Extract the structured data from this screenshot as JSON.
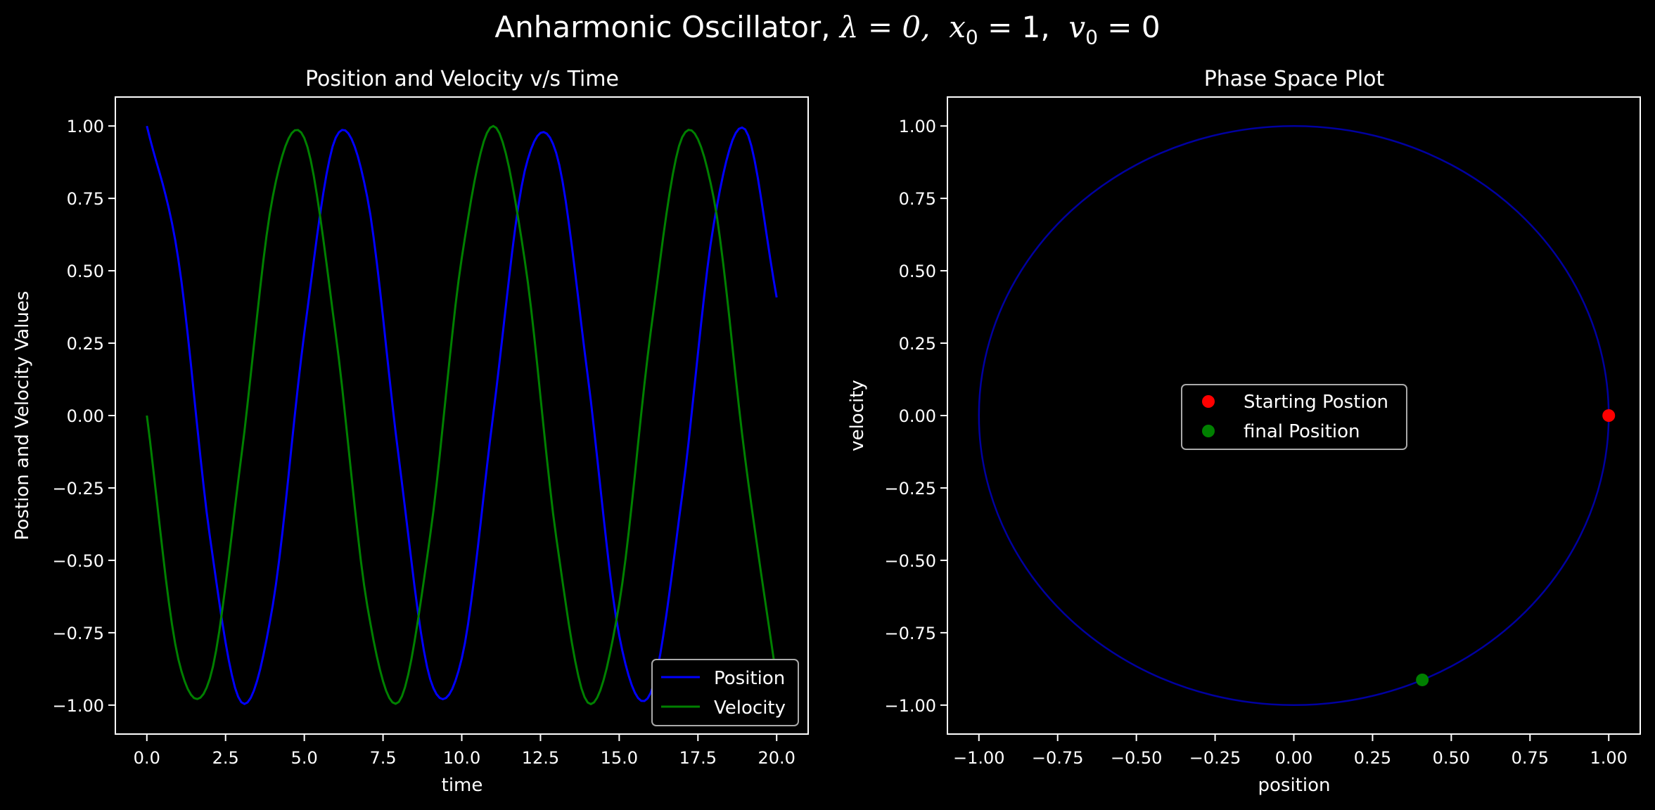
{
  "figure": {
    "title_text": "Anharmonic Oscillator, ",
    "title_lambda": "λ = 0,",
    "title_x0_var": "x",
    "title_x0_sub": "0",
    "title_x0_val": " = 1,",
    "title_v0_var": "v",
    "title_v0_sub": "0",
    "title_v0_val": " = 0",
    "background": "#000000",
    "foreground": "#ffffff"
  },
  "chart_data": [
    {
      "type": "line",
      "title": "Position and Velocity v/s Time",
      "xlabel": "time",
      "ylabel": "Postion and Velocity Values",
      "xlim": [
        -1.0,
        21.0
      ],
      "ylim": [
        -1.1,
        1.1
      ],
      "xticks": [
        0.0,
        2.5,
        5.0,
        7.5,
        10.0,
        12.5,
        15.0,
        17.5,
        20.0
      ],
      "xtick_labels": [
        "0.0",
        "2.5",
        "5.0",
        "7.5",
        "10.0",
        "12.5",
        "15.0",
        "17.5",
        "20.0"
      ],
      "yticks": [
        1.0,
        0.75,
        0.5,
        0.25,
        0.0,
        -0.25,
        -0.5,
        -0.75,
        -1.0
      ],
      "ytick_labels": [
        "1.00",
        "0.75",
        "0.50",
        "0.25",
        "0.00",
        "−0.25",
        "−0.50",
        "−0.75",
        "−1.00"
      ],
      "grid": false,
      "legend_position": "lower-right",
      "x": [
        0,
        1,
        2,
        3,
        4,
        5,
        6,
        7,
        8,
        9,
        10,
        11,
        12,
        13,
        14,
        15,
        16,
        17,
        18,
        19,
        20
      ],
      "series": [
        {
          "name": "Position",
          "color": "#0000ff",
          "values": [
            1.0,
            0.54,
            -0.416,
            -0.99,
            -0.654,
            0.284,
            0.96,
            0.754,
            -0.146,
            -0.911,
            -0.839,
            0.004,
            0.844,
            0.907,
            0.137,
            -0.76,
            -0.958,
            -0.275,
            0.66,
            0.988,
            0.408
          ]
        },
        {
          "name": "Velocity",
          "color": "#008000",
          "values": [
            0.0,
            -0.841,
            -0.909,
            -0.141,
            0.757,
            0.959,
            0.279,
            -0.657,
            -0.989,
            -0.412,
            0.544,
            1.0,
            0.537,
            -0.42,
            -0.991,
            -0.65,
            0.288,
            0.961,
            0.751,
            -0.15,
            -0.913
          ]
        }
      ]
    },
    {
      "type": "scatter",
      "title": "Phase Space Plot",
      "xlabel": "position",
      "ylabel": "velocity",
      "xlim": [
        -1.1,
        1.1
      ],
      "ylim": [
        -1.1,
        1.1
      ],
      "xticks": [
        -1.0,
        -0.75,
        -0.5,
        -0.25,
        0.0,
        0.25,
        0.5,
        0.75,
        1.0
      ],
      "xtick_labels": [
        "−1.00",
        "−0.75",
        "−0.50",
        "−0.25",
        "0.00",
        "0.25",
        "0.50",
        "0.75",
        "1.00"
      ],
      "yticks": [
        1.0,
        0.75,
        0.5,
        0.25,
        0.0,
        -0.25,
        -0.5,
        -0.75,
        -1.0
      ],
      "ytick_labels": [
        "1.00",
        "0.75",
        "0.50",
        "0.25",
        "0.00",
        "−0.25",
        "−0.50",
        "−0.75",
        "−1.00"
      ],
      "grid": false,
      "legend_position": "center",
      "trajectory": {
        "color": "#0000a0",
        "x": [
          1.0,
          0.866,
          0.5,
          0.0,
          -0.5,
          -0.866,
          -1.0,
          -0.866,
          -0.5,
          0.0,
          0.5,
          0.866,
          1.0
        ],
        "y": [
          0.0,
          -0.5,
          -0.866,
          -1.0,
          -0.866,
          -0.5,
          0.0,
          0.5,
          0.866,
          1.0,
          0.866,
          0.5,
          0.0
        ]
      },
      "points": [
        {
          "name": "Starting Postion",
          "x": 1.0,
          "y": 0.0,
          "color": "#ff0000"
        },
        {
          "name": "final Position",
          "x": 0.408,
          "y": -0.913,
          "color": "#008000"
        }
      ]
    }
  ]
}
